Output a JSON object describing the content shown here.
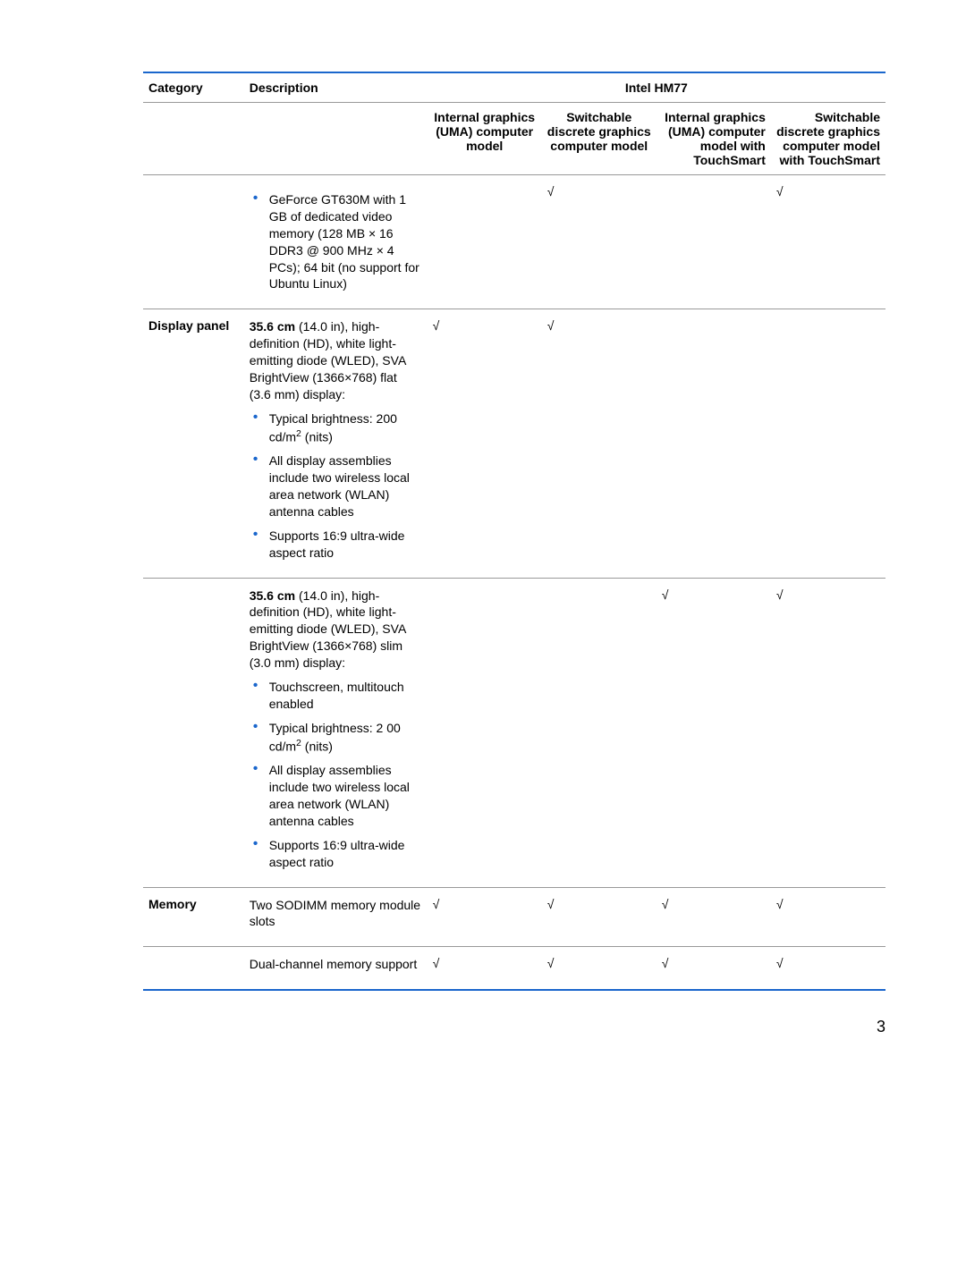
{
  "colors": {
    "accent": "#1a66cc",
    "border": "#999999",
    "text": "#000000",
    "background": "#ffffff"
  },
  "typography": {
    "font_family": "Arial",
    "base_size_pt": 10.5
  },
  "header": {
    "category": "Category",
    "description": "Description",
    "chipset": "Intel HM77",
    "cols": {
      "c1": "Internal graphics (UMA) computer model",
      "c2": "Switchable discrete graphics computer model",
      "c3": "Internal graphics (UMA) computer model with TouchSmart",
      "c4": "Switchable discrete graphics computer model with TouchSmart"
    }
  },
  "rows": [
    {
      "category": "",
      "desc": {
        "lead_bold": "",
        "lead_rest": "",
        "bullets": [
          "GeForce GT630M with 1 GB of dedicated video memory (128 MB × 16 DDR3 @ 900 MHz × 4 PCs); 64 bit (no support for Ubuntu Linux)"
        ]
      },
      "checks": [
        "",
        "√",
        "",
        "√"
      ]
    },
    {
      "category": "Display panel",
      "desc": {
        "lead_bold": "35.6 cm",
        "lead_rest": " (14.0 in), high-definition (HD), white light-emitting diode (WLED), SVA BrightView (1366×768) flat (3.6 mm) display:",
        "bullets": [
          "Typical brightness: 200 cd/m² (nits)",
          "All display assemblies include two wireless local area network (WLAN) antenna cables",
          "Supports 16:9 ultra-wide aspect ratio"
        ]
      },
      "checks": [
        "√",
        "√",
        "",
        ""
      ]
    },
    {
      "category": "",
      "desc": {
        "lead_bold": "35.6 cm",
        "lead_rest": " (14.0 in), high-definition (HD), white light-emitting diode (WLED), SVA BrightView (1366×768) slim (3.0 mm) display:",
        "bullets": [
          "Touchscreen, multitouch enabled",
          "Typical brightness: 2 00 cd/m² (nits)",
          "All display assemblies include two wireless local area network (WLAN) antenna cables",
          "Supports 16:9 ultra-wide aspect ratio"
        ]
      },
      "checks": [
        "",
        "",
        "√",
        "√"
      ]
    },
    {
      "category": "Memory",
      "desc": {
        "lead_bold": "",
        "lead_rest": "Two SODIMM memory module slots",
        "bullets": []
      },
      "checks": [
        "√",
        "√",
        "√",
        "√"
      ]
    },
    {
      "category": "",
      "desc": {
        "lead_bold": "",
        "lead_rest": "Dual-channel memory support",
        "bullets": []
      },
      "checks": [
        "√",
        "√",
        "√",
        "√"
      ],
      "final": true
    }
  ],
  "page_number": "3"
}
